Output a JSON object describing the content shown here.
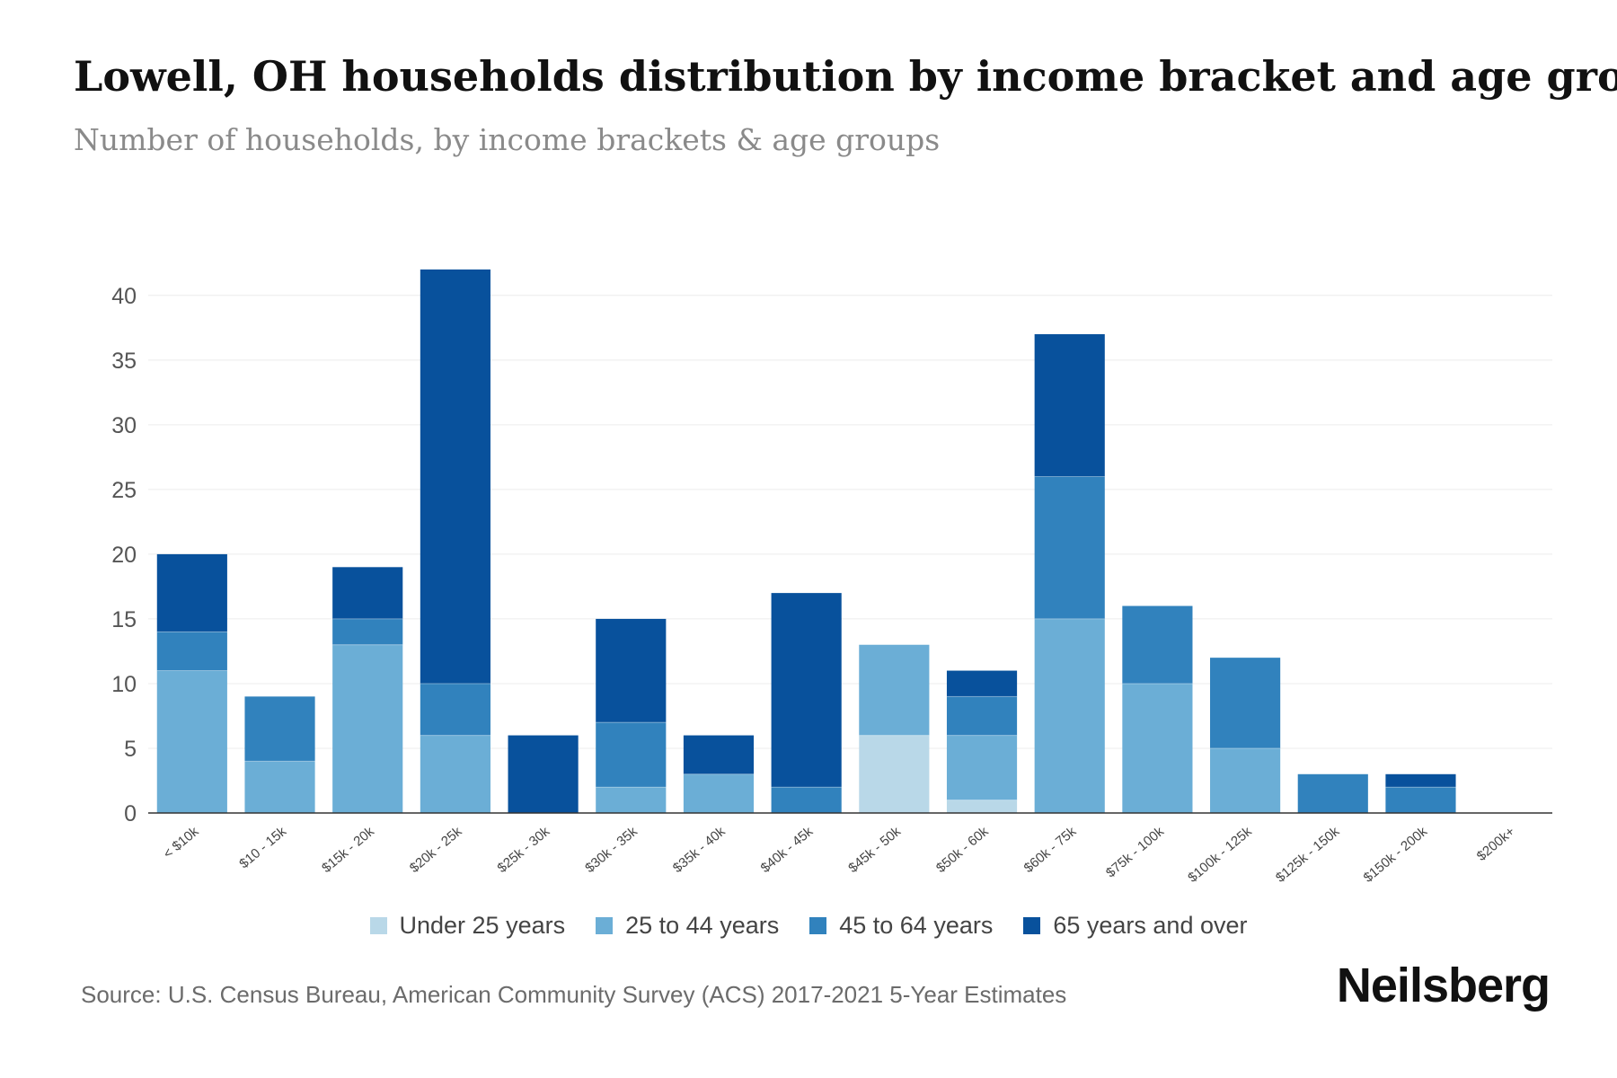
{
  "title": "Lowell, OH households distribution by income bracket and age group",
  "subtitle": "Number of households, by income brackets & age groups",
  "source": "Source: U.S. Census Bureau, American Community Survey (ACS) 2017-2021 5-Year Estimates",
  "brand": "Neilsberg",
  "chart_data": {
    "type": "bar",
    "stacked": true,
    "title": "Lowell, OH households distribution by income bracket and age group",
    "xlabel": "",
    "ylabel": "",
    "ylim": [
      0,
      42
    ],
    "yticks": [
      0,
      5,
      10,
      15,
      20,
      25,
      30,
      35,
      40
    ],
    "grid": true,
    "legend": "bottom-center",
    "categories": [
      "< $10k",
      "$10 - 15k",
      "$15k - 20k",
      "$20k - 25k",
      "$25k - 30k",
      "$30k - 35k",
      "$35k - 40k",
      "$40k - 45k",
      "$45k - 50k",
      "$50k - 60k",
      "$60k - 75k",
      "$75k - 100k",
      "$100k - 125k",
      "$125k - 150k",
      "$150k - 200k",
      "$200k+"
    ],
    "series": [
      {
        "name": "Under 25 years",
        "color": "#b9d8e8",
        "values": [
          0,
          0,
          0,
          0,
          0,
          0,
          0,
          0,
          6,
          1,
          0,
          0,
          0,
          0,
          0,
          0
        ]
      },
      {
        "name": "25 to 44 years",
        "color": "#6baed6",
        "values": [
          11,
          4,
          13,
          6,
          0,
          2,
          3,
          0,
          7,
          5,
          15,
          10,
          5,
          0,
          0,
          0
        ]
      },
      {
        "name": "45 to 64 years",
        "color": "#3182bd",
        "values": [
          3,
          5,
          2,
          4,
          0,
          5,
          0,
          2,
          0,
          3,
          11,
          6,
          7,
          3,
          2,
          0
        ]
      },
      {
        "name": "65 years and over",
        "color": "#08519c",
        "values": [
          6,
          0,
          4,
          32,
          6,
          8,
          3,
          15,
          0,
          2,
          11,
          0,
          0,
          0,
          1,
          0
        ]
      }
    ]
  }
}
